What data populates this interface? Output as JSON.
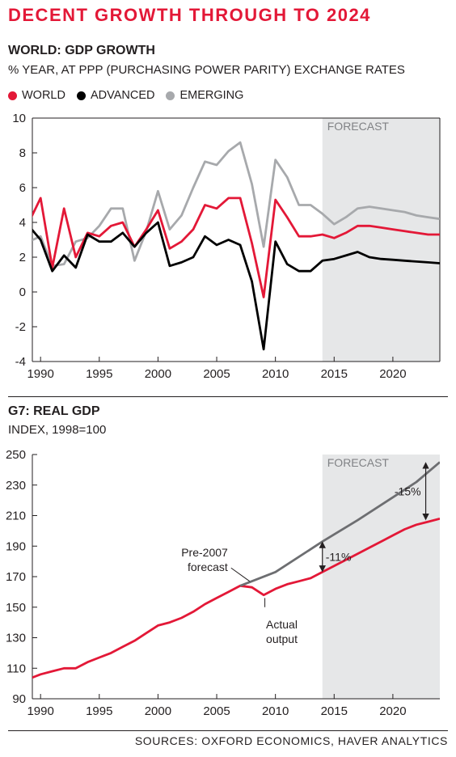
{
  "headline": "DECENT GROWTH THROUGH TO 2024",
  "sources": "SOURCES: OXFORD ECONOMICS, HAVER ANALYTICS",
  "chart_data": [
    {
      "type": "line",
      "title": "WORLD: GDP GROWTH",
      "subtitle": "% YEAR, AT PPP (PURCHASING POWER PARITY) EXCHANGE RATES",
      "xlabel": "",
      "ylabel": "",
      "xlim": [
        1989.3,
        2024
      ],
      "ylim": [
        -4,
        10
      ],
      "yticks": [
        10,
        8,
        6,
        4,
        2,
        0,
        -2,
        -4
      ],
      "xticks": [
        1990,
        1995,
        2000,
        2005,
        2010,
        2015,
        2020
      ],
      "grid": false,
      "legend_position": "top-left",
      "forecast": {
        "label": "FORECAST",
        "start": 2014,
        "end": 2024
      },
      "colors": {
        "world": "#e31837",
        "advanced": "#000000",
        "emerging": "#a7a9ac",
        "forecast_shade": "#e6e7e8"
      },
      "x": [
        1989,
        1990,
        1991,
        1992,
        1993,
        1994,
        1995,
        1996,
        1997,
        1998,
        1999,
        2000,
        2001,
        2002,
        2003,
        2004,
        2005,
        2006,
        2007,
        2008,
        2009,
        2010,
        2011,
        2012,
        2013,
        2014,
        2015,
        2016,
        2017,
        2018,
        2019,
        2020,
        2021,
        2022,
        2023,
        2024
      ],
      "series": [
        {
          "name": "EMERGING",
          "values": [
            2.9,
            3.2,
            1.5,
            1.6,
            2.9,
            3.1,
            3.8,
            4.8,
            4.8,
            1.8,
            3.5,
            5.8,
            3.6,
            4.4,
            6.0,
            7.5,
            7.3,
            8.1,
            8.6,
            6.2,
            2.6,
            7.6,
            6.6,
            5.0,
            5.0,
            4.5,
            3.9,
            4.3,
            4.8,
            4.9,
            4.8,
            4.7,
            4.6,
            4.4,
            4.3,
            4.2
          ]
        },
        {
          "name": "WORLD",
          "values": [
            4.0,
            5.4,
            1.4,
            4.8,
            2.0,
            3.4,
            3.2,
            3.8,
            4.0,
            2.6,
            3.6,
            4.7,
            2.5,
            2.9,
            3.6,
            5.0,
            4.8,
            5.4,
            5.4,
            2.8,
            -0.3,
            5.3,
            4.3,
            3.2,
            3.2,
            3.3,
            3.1,
            3.4,
            3.8,
            3.8,
            3.7,
            3.6,
            3.5,
            3.4,
            3.3,
            3.3
          ]
        },
        {
          "name": "ADVANCED",
          "values": [
            3.8,
            3.0,
            1.2,
            2.1,
            1.4,
            3.3,
            2.9,
            2.9,
            3.4,
            2.6,
            3.4,
            4.0,
            1.5,
            1.7,
            2.0,
            3.2,
            2.7,
            3.0,
            2.7,
            0.6,
            -3.3,
            2.9,
            1.6,
            1.2,
            1.2,
            1.8,
            1.9,
            2.1,
            2.3,
            2.0,
            1.9,
            1.85,
            1.8,
            1.75,
            1.7,
            1.65
          ]
        }
      ]
    },
    {
      "type": "line",
      "title": "G7: REAL GDP",
      "subtitle": "INDEX, 1998=100",
      "xlabel": "",
      "ylabel": "",
      "xlim": [
        1989.3,
        2024
      ],
      "ylim": [
        90,
        250
      ],
      "yticks": [
        250,
        230,
        210,
        190,
        170,
        150,
        130,
        110,
        90
      ],
      "xticks": [
        1990,
        1995,
        2000,
        2005,
        2010,
        2015,
        2020
      ],
      "grid": false,
      "forecast": {
        "label": "FORECAST",
        "start": 2014,
        "end": 2024
      },
      "colors": {
        "actual": "#e31837",
        "pre2007": "#6d6e71",
        "forecast_shade": "#e6e7e8",
        "annotation": "#231f20"
      },
      "series": [
        {
          "name": "Actual output",
          "x": [
            1989,
            1990,
            1991,
            1992,
            1993,
            1994,
            1995,
            1996,
            1997,
            1998,
            1999,
            2000,
            2001,
            2002,
            2003,
            2004,
            2005,
            2006,
            2007,
            2008,
            2009,
            2010,
            2011,
            2012,
            2013,
            2014,
            2015,
            2016,
            2017,
            2018,
            2019,
            2020,
            2021,
            2022,
            2023,
            2024
          ],
          "values": [
            103,
            106,
            108,
            110,
            110,
            114,
            117,
            120,
            124,
            128,
            133,
            138,
            140,
            143,
            147,
            152,
            156,
            160,
            164,
            163,
            158,
            162,
            165,
            167,
            169,
            173,
            177,
            181,
            185,
            189,
            193,
            197,
            201,
            204,
            206,
            208
          ]
        },
        {
          "name": "Pre-2007 forecast",
          "x": [
            2007,
            2010,
            2014,
            2017,
            2020,
            2022,
            2024
          ],
          "values": [
            164,
            173,
            193,
            207,
            222,
            232,
            245
          ]
        }
      ],
      "annotations": [
        {
          "text": "Pre-2007",
          "text2": "forecast",
          "x": 2006.5,
          "y": 181
        },
        {
          "text": "Actual",
          "text2": "output",
          "x": 2009.2,
          "y": 150
        },
        {
          "text": "-11%",
          "x": 2014,
          "y_from": 173,
          "y_to": 193
        },
        {
          "text": "-15%",
          "x": 2022.8,
          "y_from": 207,
          "y_to": 245
        }
      ]
    }
  ]
}
